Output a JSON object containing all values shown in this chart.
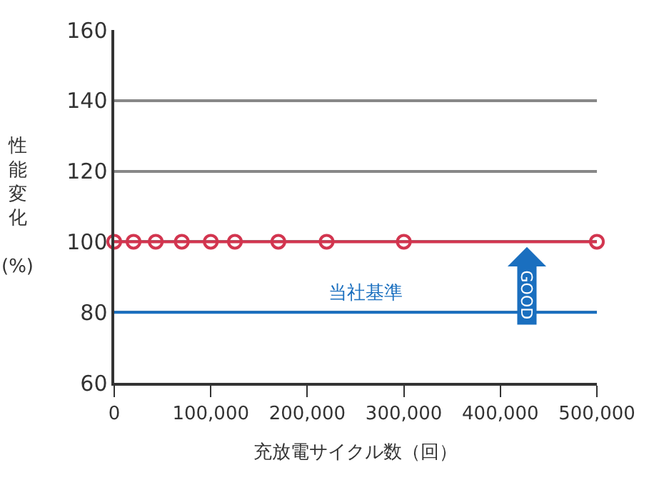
{
  "chart_data": {
    "type": "line",
    "xlabel": "充放電サイクル数（回）",
    "ylabel": "性能変化 (%)",
    "x": [
      0,
      20000,
      43000,
      70000,
      100000,
      125000,
      170000,
      220000,
      300000,
      500000
    ],
    "series": [
      {
        "color": "#d2354f",
        "values": [
          100,
          100,
          100,
          100,
          100,
          100,
          100,
          100,
          100,
          100
        ]
      }
    ],
    "marker": "circle",
    "line_style": "solid",
    "xlim": [
      0,
      500000
    ],
    "xticks": [
      0,
      {
        "value": 100000,
        "label": "100,000"
      },
      {
        "value": 200000,
        "label": "200,000"
      },
      {
        "value": 300000,
        "label": "300,000"
      },
      {
        "value": 400000,
        "label": "400,000"
      },
      {
        "value": 500000,
        "label": "500,000"
      }
    ],
    "ylim": [
      60,
      160
    ],
    "yticks": [
      60,
      80,
      100,
      120,
      140,
      160
    ],
    "grid": "y",
    "ref_lines": [
      {
        "axis": "y",
        "value": 80,
        "label": "当社基準",
        "color": "#1a6fbf"
      }
    ],
    "annotations": [
      "GOOD"
    ]
  }
}
